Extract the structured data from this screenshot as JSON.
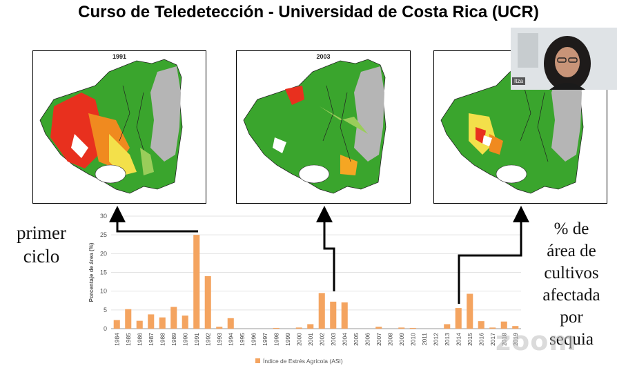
{
  "slide": {
    "title": "Curso de Teledetección - Universidad de Costa Rica (UCR)",
    "left_caption_lines": [
      "primer",
      "ciclo"
    ],
    "right_caption_lines": [
      "% de",
      "área de",
      "cultivos",
      "afectada",
      "por",
      "sequia"
    ]
  },
  "maps": [
    {
      "year": "1991"
    },
    {
      "year": "2003"
    },
    {
      "year": ""
    }
  ],
  "webcam": {
    "participant_name": "Itza"
  },
  "watermark": {
    "text": "zoom"
  },
  "chart_data": {
    "type": "bar",
    "title": "",
    "ylabel": "Porcentaje de área (%)",
    "xlabel": "",
    "ylim": [
      0,
      30
    ],
    "yticks": [
      0,
      5,
      10,
      15,
      20,
      25,
      30
    ],
    "grid": true,
    "legend_position": "bottom",
    "bar_color": "#f4a460",
    "categories": [
      "1984",
      "1985",
      "1986",
      "1987",
      "1988",
      "1989",
      "1990",
      "1991",
      "1992",
      "1993",
      "1994",
      "1995",
      "1996",
      "1997",
      "1998",
      "1999",
      "2000",
      "2001",
      "2002",
      "2003",
      "2004",
      "2005",
      "2006",
      "2007",
      "2008",
      "2009",
      "2010",
      "2011",
      "2012",
      "2013",
      "2014",
      "2015",
      "2016",
      "2017",
      "2018",
      "2019"
    ],
    "series": [
      {
        "name": "Índice de Estrés Agrícola (ASI)",
        "values": [
          2.3,
          5.2,
          2.1,
          3.8,
          3.0,
          5.8,
          3.5,
          25.0,
          14.0,
          0.5,
          2.8,
          0,
          0,
          0,
          0.2,
          0,
          0.3,
          1.2,
          9.5,
          7.2,
          7.0,
          0,
          0,
          0.5,
          0,
          0.3,
          0.2,
          0,
          0,
          1.2,
          5.5,
          9.3,
          2.0,
          0.3,
          1.9,
          0.7
        ]
      }
    ]
  }
}
